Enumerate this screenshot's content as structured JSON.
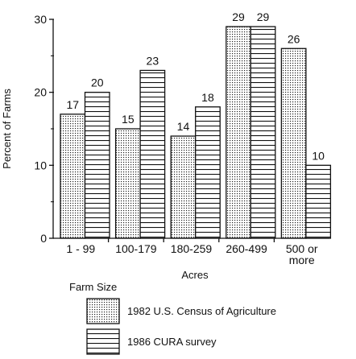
{
  "chart_data": {
    "type": "bar",
    "categories": [
      "1 - 99",
      "100-179",
      "180-259",
      "260-499",
      "500 or more"
    ],
    "category_lines": [
      [
        "1 - 99"
      ],
      [
        "100-179"
      ],
      [
        "180-259"
      ],
      [
        "260-499"
      ],
      [
        "500 or",
        "more"
      ]
    ],
    "series": [
      {
        "name": "1982 U.S. Census of Agriculture",
        "values": [
          17,
          15,
          14,
          29,
          26
        ],
        "fill": "dotted"
      },
      {
        "name": "1986 CURA survey",
        "values": [
          20,
          23,
          18,
          29,
          10
        ],
        "fill": "horizontal-lines"
      }
    ],
    "data_labels": [
      [
        "17",
        "15",
        "14",
        "29",
        "26"
      ],
      [
        "20",
        "23",
        "18",
        "29",
        "10"
      ]
    ],
    "xlabel": "Acres",
    "ylabel": "Percent of Farms",
    "ylim": [
      0,
      30
    ],
    "yticks": [
      0,
      10,
      20,
      30
    ],
    "grid": false,
    "legend_title": "Farm Size",
    "legend_position": "bottom",
    "colors": {
      "ink": "#111111",
      "background": "#ffffff"
    }
  }
}
